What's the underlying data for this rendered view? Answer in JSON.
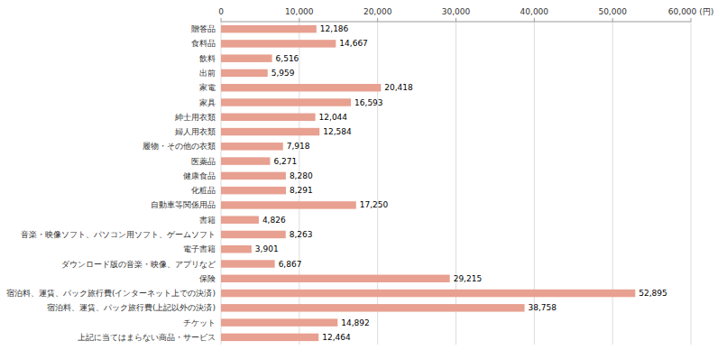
{
  "chart_data": {
    "type": "bar",
    "orientation": "horizontal",
    "categories": [
      "贈答品",
      "食料品",
      "飲料",
      "出前",
      "家電",
      "家具",
      "紳士用衣類",
      "婦人用衣類",
      "履物・その他の衣類",
      "医薬品",
      "健康食品",
      "化粧品",
      "自動車等関係用品",
      "書籍",
      "音楽・映像ソフト、パソコン用ソフト、ゲームソフト",
      "電子書籍",
      "ダウンロード版の音楽・映像、アプリなど",
      "保険",
      "宿泊料、運賃、パック旅行費(インターネット上での決済)",
      "宿泊料、運賃、パック旅行費(上記以外の決済)",
      "チケット",
      "上記に当てはまらない商品・サービス"
    ],
    "values": [
      12186,
      14667,
      6516,
      5959,
      20418,
      16593,
      12044,
      12584,
      7918,
      6271,
      8280,
      8291,
      17250,
      4826,
      8263,
      3901,
      6867,
      29215,
      52895,
      38758,
      14892,
      12464
    ],
    "value_labels": [
      "12,186",
      "14,667",
      "6,516",
      "5,959",
      "20,418",
      "16,593",
      "12,044",
      "12,584",
      "7,918",
      "6,271",
      "8,280",
      "8,291",
      "17,250",
      "4,826",
      "8,263",
      "3,901",
      "6,867",
      "29,215",
      "52,895",
      "38,758",
      "14,892",
      "12,464"
    ],
    "color": "#e8a090",
    "data_labels": true,
    "grid": true,
    "xlim": [
      0,
      60000
    ],
    "xticks": [
      0,
      {
        "value": 10000,
        "label": "10,000"
      },
      {
        "value": 20000,
        "label": "20,000"
      },
      {
        "value": 30000,
        "label": "30,000"
      },
      {
        "value": 40000,
        "label": "40,000"
      },
      {
        "value": 50000,
        "label": "50,000"
      },
      {
        "value": 60000,
        "label": "60,000 (円)"
      }
    ]
  }
}
